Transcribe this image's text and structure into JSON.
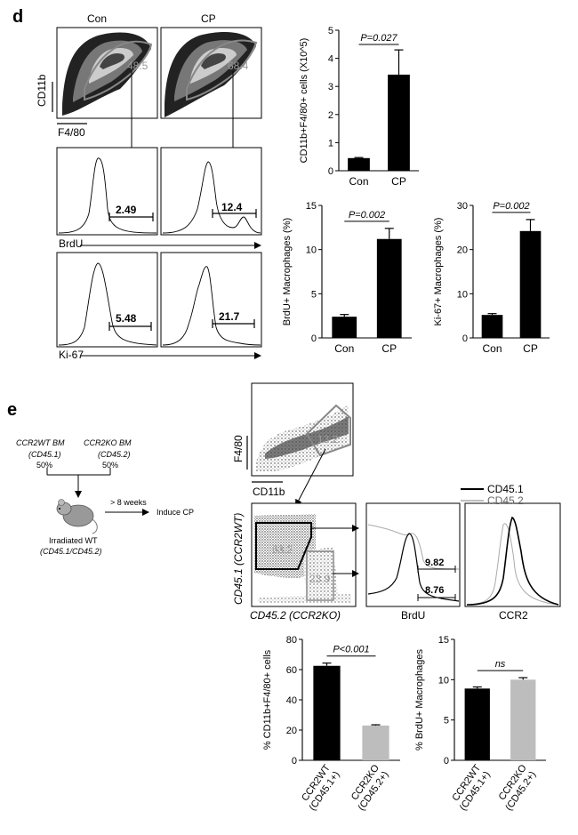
{
  "panel_d": {
    "label": "d",
    "col_con": "Con",
    "col_cp": "CP",
    "y_axis_label": "CD11b",
    "x_axis_label": "F4/80",
    "gate_con": "48.5",
    "gate_cp": "68.4",
    "brdu_label": "BrdU",
    "brdu_con": "2.49",
    "brdu_cp": "12.4",
    "ki67_label": "Ki-67",
    "ki67_con": "5.48",
    "ki67_cp": "21.7"
  },
  "panel_e": {
    "label": "e",
    "donor_wt": "CCR2WT BM",
    "donor_wt_sub": "(CD45.1)",
    "donor_wt_pct": "50%",
    "donor_ko": "CCR2KO BM",
    "donor_ko_sub": "(CD45.2)",
    "donor_ko_pct": "50%",
    "weeks": "> 8 weeks",
    "induce": "Induce CP",
    "recipient": "Irradiated WT",
    "recipient_sub": "(CD45.1/CD45.2)",
    "top_plot_y": "F4/80",
    "top_plot_x": "CD11b",
    "top_gate": "13.2",
    "mid_y": "CD45.1 (CCR2WT)",
    "mid_x": "CD45.2 (CCR2KO)",
    "gate_wt": "63.2",
    "gate_ko": "23.9",
    "brdu_hist_label": "BrdU",
    "brdu_val_1": "9.82",
    "brdu_val_2": "8.76",
    "ccr2_hist_label": "CCR2",
    "legend_1": "CD45.1",
    "legend_2": "CD45.2"
  },
  "chart_data": [
    {
      "type": "bar",
      "ylabel": "CD11b+F4/80+ cells (X10^5)",
      "categories": [
        "Con",
        "CP"
      ],
      "values": [
        0.45,
        3.42
      ],
      "errors": [
        0.02,
        0.88
      ],
      "ylim": [
        0,
        5
      ],
      "yticks": [
        0,
        1,
        2,
        3,
        4,
        5
      ],
      "annotation": "P=0.027",
      "colors": [
        "#000000",
        "#000000"
      ]
    },
    {
      "type": "bar",
      "ylabel": "BrdU+ Macrophages (%)",
      "categories": [
        "Con",
        "CP"
      ],
      "values": [
        2.4,
        11.2
      ],
      "errors": [
        0.25,
        1.2
      ],
      "ylim": [
        0,
        15
      ],
      "yticks": [
        0,
        5,
        10,
        15
      ],
      "annotation": "P=0.002",
      "colors": [
        "#000000",
        "#000000"
      ]
    },
    {
      "type": "bar",
      "ylabel": "Ki-67+ Macrophages (%)",
      "categories": [
        "Con",
        "CP"
      ],
      "values": [
        5.2,
        24.2
      ],
      "errors": [
        0.3,
        2.6
      ],
      "ylim": [
        0,
        30
      ],
      "yticks": [
        0,
        10,
        20,
        30
      ],
      "annotation": "P=0.002",
      "colors": [
        "#000000",
        "#000000"
      ]
    },
    {
      "type": "bar",
      "ylabel": "% CD11b+F4/80+ cells",
      "categories": [
        "CCR2WT (CD45.1+)",
        "CCR2KO (CD45.2+)"
      ],
      "values": [
        62.5,
        23.0
      ],
      "errors": [
        1.8,
        0.5
      ],
      "ylim": [
        0,
        80
      ],
      "yticks": [
        0,
        20,
        40,
        60,
        80
      ],
      "annotation": "P<0.001",
      "colors": [
        "#000000",
        "#bdbdbd"
      ]
    },
    {
      "type": "bar",
      "ylabel": "% BrdU+ Macrophages",
      "categories": [
        "CCR2WT (CD45.1+)",
        "CCR2KO (CD45.2+)"
      ],
      "values": [
        8.9,
        10.0
      ],
      "errors": [
        0.2,
        0.25
      ],
      "ylim": [
        0,
        15
      ],
      "yticks": [
        0,
        5,
        10,
        15
      ],
      "annotation": "ns",
      "colors": [
        "#000000",
        "#bdbdbd"
      ]
    }
  ]
}
